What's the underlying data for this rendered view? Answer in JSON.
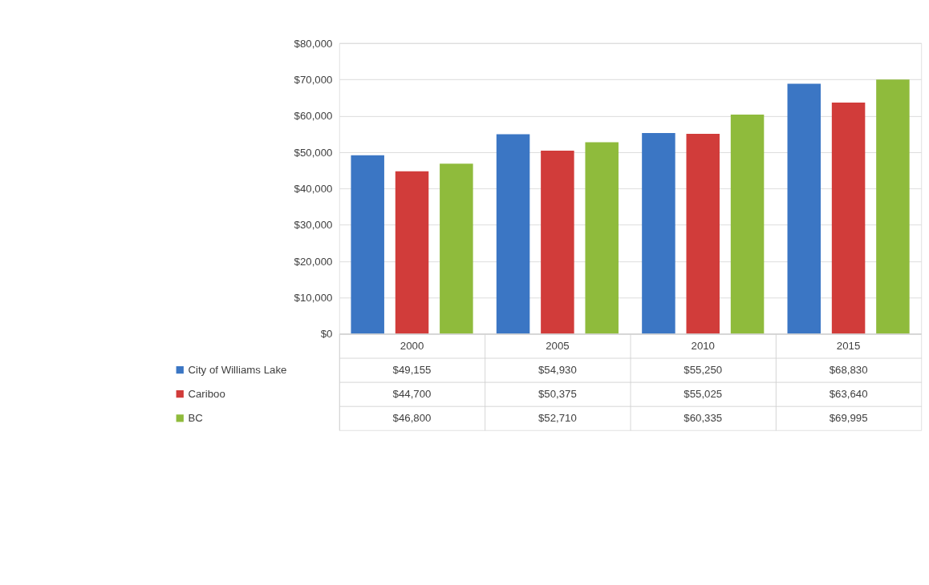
{
  "chart_data": {
    "type": "bar",
    "categories": [
      "2000",
      "2005",
      "2010",
      "2015"
    ],
    "series": [
      {
        "name": "City of Williams Lake",
        "color": "#3b76c4",
        "values": [
          49155,
          54930,
          55250,
          68830
        ],
        "value_labels": [
          "$49,155",
          "$54,930",
          "$55,250",
          "$68,830"
        ]
      },
      {
        "name": "Cariboo",
        "color": "#d13c3a",
        "values": [
          44700,
          50375,
          55025,
          63640
        ],
        "value_labels": [
          "$44,700",
          "$50,375",
          "$55,025",
          "$63,640"
        ]
      },
      {
        "name": "BC",
        "color": "#8fbb3c",
        "values": [
          46800,
          52710,
          60335,
          69995
        ],
        "value_labels": [
          "$46,800",
          "$52,710",
          "$60,335",
          "$69,995"
        ]
      }
    ],
    "ylim": [
      0,
      80000
    ],
    "yticks": [
      {
        "value": 0,
        "label": "$0"
      },
      {
        "value": 10000,
        "label": "$10,000"
      },
      {
        "value": 20000,
        "label": "$20,000"
      },
      {
        "value": 30000,
        "label": "$30,000"
      },
      {
        "value": 40000,
        "label": "$40,000"
      },
      {
        "value": 50000,
        "label": "$50,000"
      },
      {
        "value": 60000,
        "label": "$60,000"
      },
      {
        "value": 70000,
        "label": "$70,000"
      },
      {
        "value": 80000,
        "label": "$80,000"
      }
    ],
    "grid": "y",
    "legend": "bottom left"
  }
}
